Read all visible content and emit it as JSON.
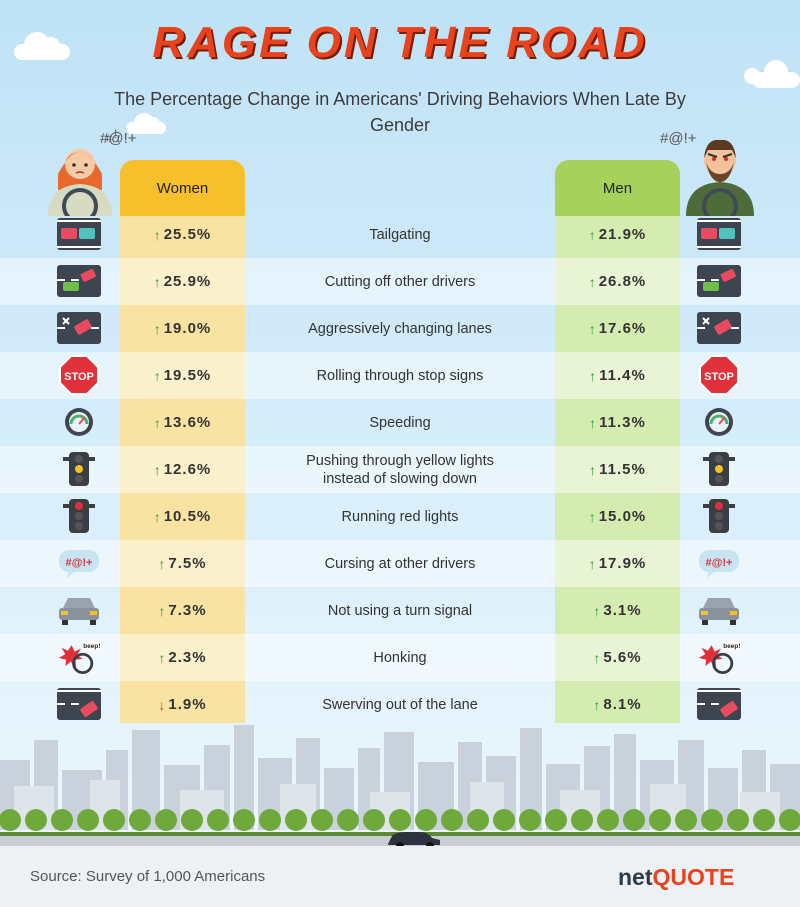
{
  "title": "Rage on the Road",
  "subtitle": "The Percentage Change in Americans' Driving Behaviors When Late By Gender",
  "source": "Source: Survey of 1,000 Americans",
  "logo": {
    "part1": "net",
    "part2": "QUOTE"
  },
  "colors": {
    "women": "#f5c02c",
    "men": "#a6d15a",
    "increase": "#2e9b3a",
    "decrease": "#e3452f",
    "title": "#e8431c"
  },
  "chart_data": {
    "type": "table",
    "columns": [
      "Women",
      "Men"
    ],
    "rows": [
      {
        "behavior": "Tailgating",
        "women": "25.5%",
        "men": "21.9%",
        "women_dir": "up",
        "men_dir": "up",
        "icon": "tailgating-icon"
      },
      {
        "behavior": "Cutting off other drivers",
        "women": "25.9%",
        "men": "26.8%",
        "women_dir": "up",
        "men_dir": "up",
        "icon": "cutting-off-icon"
      },
      {
        "behavior": "Aggressively changing lanes",
        "women": "19.0%",
        "men": "17.6%",
        "women_dir": "up",
        "men_dir": "up",
        "icon": "lane-change-icon"
      },
      {
        "behavior": "Rolling through stop signs",
        "women": "19.5%",
        "men": "11.4%",
        "women_dir": "up",
        "men_dir": "up",
        "icon": "stop-sign-icon",
        "icon_text": "STOP"
      },
      {
        "behavior": "Speeding",
        "women": "13.6%",
        "men": "11.3%",
        "women_dir": "up",
        "men_dir": "up",
        "icon": "speedometer-icon"
      },
      {
        "behavior": "Pushing through yellow lights instead of slowing down",
        "women": "12.6%",
        "men": "11.5%",
        "women_dir": "up",
        "men_dir": "up",
        "icon": "yellow-light-icon"
      },
      {
        "behavior": "Running red lights",
        "women": "10.5%",
        "men": "15.0%",
        "women_dir": "up",
        "men_dir": "up",
        "icon": "red-light-icon"
      },
      {
        "behavior": "Cursing at other drivers",
        "women": "7.5%",
        "men": "17.9%",
        "women_dir": "up",
        "men_dir": "up",
        "icon": "cursing-icon",
        "icon_text": "#@!+"
      },
      {
        "behavior": "Not using a turn signal",
        "women": "7.3%",
        "men": "3.1%",
        "women_dir": "up",
        "men_dir": "up",
        "icon": "car-rear-icon"
      },
      {
        "behavior": "Honking",
        "women": "2.3%",
        "men": "5.6%",
        "women_dir": "up",
        "men_dir": "up",
        "icon": "honking-icon",
        "icon_text": "beep!"
      },
      {
        "behavior": "Swerving out of the lane",
        "women": "1.9%",
        "men": "8.1%",
        "women_dir": "down",
        "men_dir": "up",
        "icon": "swerving-icon"
      }
    ]
  }
}
